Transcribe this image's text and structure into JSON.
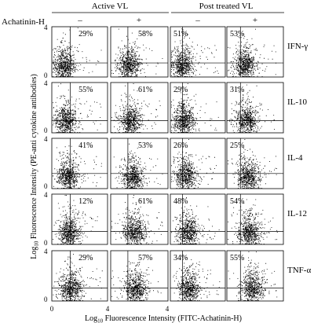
{
  "chart_data": {
    "type": "scatter",
    "header": {
      "row_label": "Achatinin-H",
      "groups": [
        "Active VL",
        "Post treated VL"
      ],
      "conditions": [
        "–",
        "+",
        "–",
        "+"
      ]
    },
    "rows": [
      "IFN-γ",
      "IL-10",
      "IL-4",
      "IL-12",
      "TNF-α"
    ],
    "percentages": [
      [
        "29%",
        "58%",
        "51%",
        "53%"
      ],
      [
        "55%",
        "61%",
        "29%",
        "31%"
      ],
      [
        "41%",
        "53%",
        "26%",
        "25%"
      ],
      [
        "12%",
        "61%",
        "48%",
        "54%"
      ],
      [
        "29%",
        "57%",
        "34%",
        "55%"
      ]
    ],
    "axis": {
      "xlabel_prefix": "Log",
      "xlabel_sub": "10",
      "xlabel_rest": " Fluorescence Intensity (FITC-Achatinin-H)",
      "ylabel_prefix": "Log",
      "ylabel_sub": "10",
      "ylabel_rest": " Fluorescence Intensity (PE-anti cytokine antibodies)",
      "tick_min": "0",
      "tick_max": "4",
      "xlim": [
        0,
        4
      ],
      "ylim": [
        0,
        4
      ]
    }
  }
}
